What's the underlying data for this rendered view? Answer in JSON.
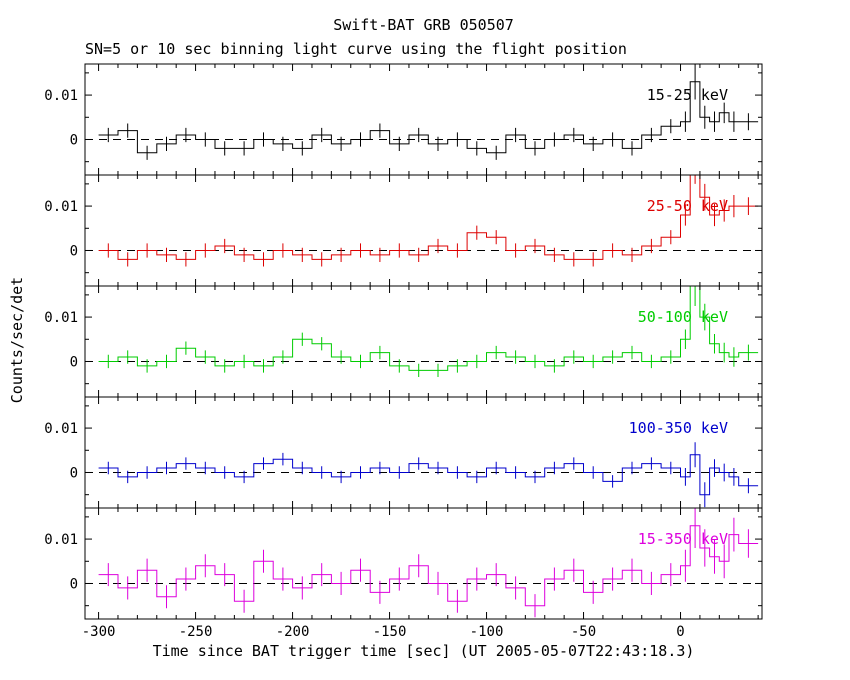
{
  "chart_data": {
    "type": "line",
    "subtype": "stepped-histogram-light-curve-with-error-bars",
    "title": "Swift-BAT GRB 050507",
    "subtitle": "SN=5 or 10 sec binning light curve using the flight position",
    "xlabel": "Time since BAT trigger time [sec] (UT 2005-05-07T22:43:18.3)",
    "ylabel": "Counts/sec/det",
    "panels": 5,
    "grid": false,
    "label_position": "upper right inside each panel",
    "xlim": [
      -307,
      42
    ],
    "ylim": [
      -0.008,
      0.017
    ],
    "x_ticks": [
      -300,
      -250,
      -200,
      -150,
      -100,
      -50,
      0
    ],
    "y_ticks": [
      0,
      0.01
    ],
    "y_tick_labels": [
      "0",
      "0.01"
    ],
    "zero_line": {
      "style": "dashed",
      "color": "#000000"
    },
    "bin_edges": [
      -300,
      -290,
      -280,
      -270,
      -260,
      -250,
      -240,
      -230,
      -220,
      -210,
      -200,
      -190,
      -180,
      -170,
      -160,
      -150,
      -140,
      -130,
      -120,
      -110,
      -100,
      -90,
      -80,
      -70,
      -60,
      -50,
      -40,
      -30,
      -20,
      -10,
      0,
      5,
      10,
      15,
      20,
      25,
      30,
      40
    ],
    "series": [
      {
        "name": "15-25 keV",
        "color": "#000000",
        "values": [
          0.001,
          0.002,
          -0.003,
          -0.001,
          0.001,
          0.0,
          -0.002,
          -0.002,
          0.0,
          -0.001,
          -0.002,
          0.001,
          -0.001,
          0.0,
          0.002,
          -0.001,
          0.001,
          -0.001,
          0.0,
          -0.002,
          -0.003,
          0.001,
          -0.002,
          0.0,
          0.001,
          -0.001,
          0.0,
          -0.002,
          0.001,
          0.003,
          0.004,
          0.013,
          0.005,
          0.004,
          0.006,
          0.004,
          0.004
        ],
        "errors": [
          0.0016,
          0.0016,
          0.0016,
          0.0016,
          0.0016,
          0.0016,
          0.0016,
          0.0016,
          0.0016,
          0.0016,
          0.0016,
          0.0016,
          0.0016,
          0.0016,
          0.0016,
          0.0016,
          0.0016,
          0.0016,
          0.0016,
          0.0016,
          0.0016,
          0.0016,
          0.0016,
          0.0016,
          0.0016,
          0.0016,
          0.0016,
          0.0016,
          0.0016,
          0.0016,
          0.0023,
          0.004,
          0.0026,
          0.0023,
          0.0023,
          0.0023,
          0.0019
        ]
      },
      {
        "name": "25-50 keV",
        "color": "#dd0000",
        "values": [
          0.0,
          -0.002,
          0.0,
          -0.001,
          -0.002,
          0.0,
          0.001,
          -0.001,
          -0.002,
          0.0,
          -0.001,
          -0.002,
          -0.001,
          0.0,
          -0.001,
          0.0,
          -0.001,
          0.001,
          0.0,
          0.004,
          0.003,
          0.0,
          0.001,
          -0.001,
          -0.002,
          -0.002,
          0.0,
          -0.001,
          0.001,
          0.003,
          0.008,
          0.02,
          0.012,
          0.008,
          0.009,
          0.01,
          0.01
        ],
        "errors": [
          0.0016,
          0.0016,
          0.0016,
          0.0016,
          0.0016,
          0.0016,
          0.0016,
          0.0016,
          0.0016,
          0.0016,
          0.0016,
          0.0016,
          0.0016,
          0.0016,
          0.0016,
          0.0016,
          0.0016,
          0.0016,
          0.0016,
          0.0016,
          0.0016,
          0.0016,
          0.0016,
          0.0016,
          0.0016,
          0.0016,
          0.0016,
          0.0016,
          0.0016,
          0.0016,
          0.0024,
          0.005,
          0.003,
          0.0025,
          0.0025,
          0.0025,
          0.002
        ]
      },
      {
        "name": "50-100 keV",
        "color": "#00cc00",
        "values": [
          0.0,
          0.001,
          -0.001,
          0.0,
          0.003,
          0.001,
          -0.001,
          0.0,
          -0.001,
          0.001,
          0.005,
          0.004,
          0.001,
          0.0,
          0.002,
          -0.001,
          -0.002,
          -0.002,
          -0.001,
          0.0,
          0.002,
          0.001,
          0.0,
          -0.001,
          0.001,
          0.0,
          0.001,
          0.002,
          0.0,
          0.001,
          0.005,
          0.017,
          0.01,
          0.004,
          0.002,
          0.001,
          0.002
        ],
        "errors": [
          0.0015,
          0.0015,
          0.0015,
          0.0015,
          0.0015,
          0.0015,
          0.0015,
          0.0015,
          0.0015,
          0.0015,
          0.0015,
          0.0015,
          0.0015,
          0.0015,
          0.0015,
          0.0015,
          0.0015,
          0.0015,
          0.0015,
          0.0015,
          0.0015,
          0.0015,
          0.0015,
          0.0015,
          0.0015,
          0.0015,
          0.0015,
          0.0015,
          0.0015,
          0.0015,
          0.0022,
          0.0045,
          0.003,
          0.0022,
          0.0022,
          0.0022,
          0.0018
        ]
      },
      {
        "name": "100-350 keV",
        "color": "#0000cc",
        "values": [
          0.001,
          -0.001,
          0.0,
          0.001,
          0.002,
          0.001,
          0.0,
          -0.001,
          0.002,
          0.003,
          0.001,
          0.0,
          -0.001,
          0.0,
          0.001,
          0.0,
          0.002,
          0.001,
          0.0,
          -0.001,
          0.001,
          0.0,
          -0.001,
          0.001,
          0.002,
          0.0,
          -0.002,
          0.001,
          0.002,
          0.001,
          -0.001,
          0.004,
          -0.005,
          0.001,
          0.0,
          -0.001,
          -0.003
        ],
        "errors": [
          0.0014,
          0.0014,
          0.0014,
          0.0014,
          0.0014,
          0.0014,
          0.0014,
          0.0014,
          0.0014,
          0.0014,
          0.0014,
          0.0014,
          0.0014,
          0.0014,
          0.0014,
          0.0014,
          0.0014,
          0.0014,
          0.0014,
          0.0014,
          0.0014,
          0.0014,
          0.0014,
          0.0014,
          0.0014,
          0.0014,
          0.0014,
          0.0014,
          0.0014,
          0.0014,
          0.002,
          0.0028,
          0.0028,
          0.002,
          0.002,
          0.002,
          0.0017
        ]
      },
      {
        "name": "15-350 keV",
        "color": "#dd00dd",
        "values": [
          0.002,
          -0.001,
          0.003,
          -0.003,
          0.001,
          0.004,
          0.002,
          -0.004,
          0.005,
          0.001,
          -0.001,
          0.002,
          0.0,
          0.003,
          -0.002,
          0.001,
          0.004,
          0.0,
          -0.004,
          0.001,
          0.002,
          -0.001,
          -0.005,
          0.001,
          0.003,
          -0.002,
          0.001,
          0.003,
          0.0,
          0.002,
          0.004,
          0.013,
          0.008,
          0.006,
          0.005,
          0.011,
          0.009
        ],
        "errors": [
          0.0026,
          0.0026,
          0.0026,
          0.0026,
          0.0026,
          0.0026,
          0.0026,
          0.0026,
          0.0026,
          0.0026,
          0.0026,
          0.0026,
          0.0026,
          0.0026,
          0.0026,
          0.0026,
          0.0026,
          0.0026,
          0.0026,
          0.0026,
          0.0026,
          0.0026,
          0.0026,
          0.0026,
          0.0026,
          0.0026,
          0.0026,
          0.0026,
          0.0026,
          0.0026,
          0.0036,
          0.005,
          0.0042,
          0.0038,
          0.0038,
          0.0038,
          0.0032
        ]
      }
    ]
  }
}
